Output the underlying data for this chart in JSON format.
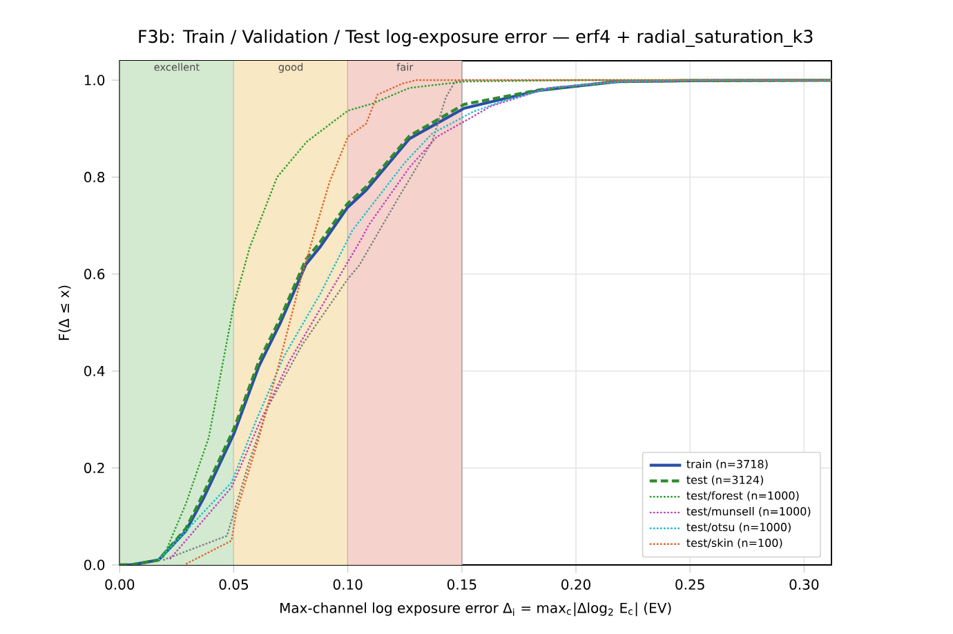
{
  "chart_data": {
    "type": "line",
    "title": "F3b: Train / Validation / Test log-exposure error — erf4 + radial_saturation_k3",
    "xlabel": "Max-channel log exposure error Δ$_{i}$ = max$_{c}$|Δlog$_{2}$ E$_{c}$|  (EV)",
    "ylabel": "F(Δ ≤ x)",
    "xlim": [
      0,
      0.312
    ],
    "ylim": [
      0,
      1.04
    ],
    "xticks": [
      {
        "value": 0,
        "label": "0.00"
      },
      {
        "value": 0.05,
        "label": "0.05"
      },
      {
        "value": 0.1,
        "label": "0.10"
      },
      {
        "value": 0.15,
        "label": "0.15"
      },
      {
        "value": 0.2,
        "label": "0.20"
      },
      {
        "value": 0.25,
        "label": "0.25"
      },
      {
        "value": 0.3,
        "label": "0.30"
      }
    ],
    "yticks": [
      {
        "value": 0,
        "label": "0.0"
      },
      {
        "value": 0.2,
        "label": "0.2"
      },
      {
        "value": 0.4,
        "label": "0.4"
      },
      {
        "value": 0.6,
        "label": "0.6"
      },
      {
        "value": 0.8,
        "label": "0.8"
      },
      {
        "value": 1.0,
        "label": "1.0"
      }
    ],
    "grid": true,
    "legend": "bottom right",
    "marker": "none",
    "bands": [
      {
        "axis": "x",
        "from": 0,
        "to": 0.05,
        "label": "excellent",
        "color": "#d3ead0"
      },
      {
        "axis": "x",
        "from": 0.05,
        "to": 0.1,
        "label": "good",
        "color": "#f8e8c4"
      },
      {
        "axis": "x",
        "from": 0.1,
        "to": 0.15,
        "label": "fair",
        "color": "#f5d3cc"
      }
    ],
    "series": [
      {
        "name": "train (n=3718)",
        "color": "#2a4ea6",
        "line_style": "solid",
        "x": [
          0,
          0.005,
          0.017,
          0.029,
          0.037,
          0.05,
          0.061,
          0.0705,
          0.0816,
          0.0877,
          0.0998,
          0.108,
          0.127,
          0.151,
          0.184,
          0.218,
          0.25,
          0.312
        ],
        "values": [
          0,
          0,
          0.01,
          0.07,
          0.14,
          0.27,
          0.41,
          0.5,
          0.62,
          0.655,
          0.737,
          0.773,
          0.879,
          0.942,
          0.979,
          0.997,
          0.999,
          1.0
        ]
      },
      {
        "name": "test (n=3124)",
        "color": "#2e8b2e",
        "line_style": "dashed",
        "x": [
          0,
          0.005,
          0.017,
          0.029,
          0.037,
          0.05,
          0.061,
          0.0705,
          0.0816,
          0.0877,
          0.0998,
          0.108,
          0.127,
          0.151,
          0.184,
          0.218,
          0.25,
          0.312
        ],
        "values": [
          0,
          0,
          0.01,
          0.075,
          0.15,
          0.28,
          0.42,
          0.51,
          0.63,
          0.665,
          0.745,
          0.78,
          0.885,
          0.95,
          0.98,
          0.997,
          0.999,
          1.0
        ]
      },
      {
        "color": "#7f7f7f",
        "line_style": "dotted",
        "x": [
          0.019,
          0.047,
          0.057,
          0.065,
          0.08,
          0.1,
          0.105,
          0.123,
          0.137,
          0.143,
          0.147,
          0.15,
          0.312
        ],
        "values": [
          0.01,
          0.06,
          0.216,
          0.326,
          0.454,
          0.59,
          0.618,
          0.764,
          0.874,
          0.965,
          0.997,
          1.0,
          1.0
        ]
      },
      {
        "name": "test/forest (n=1000)",
        "color": "#2ca02c",
        "line_style": "dotted",
        "x": [
          0.019,
          0.029,
          0.039,
          0.05,
          0.057,
          0.069,
          0.082,
          0.1,
          0.111,
          0.127,
          0.151,
          0.2,
          0.312
        ],
        "values": [
          0.015,
          0.126,
          0.262,
          0.536,
          0.655,
          0.8,
          0.873,
          0.937,
          0.952,
          0.984,
          0.997,
          1.0,
          1.0
        ]
      },
      {
        "name": "test/munsell (n=1000)",
        "color": "#bf40bf",
        "line_style": "dotted",
        "x": [
          0.022,
          0.049,
          0.061,
          0.074,
          0.09,
          0.106,
          0.109,
          0.127,
          0.139,
          0.153,
          0.163,
          0.188,
          0.218,
          0.26,
          0.312
        ],
        "values": [
          0.012,
          0.16,
          0.29,
          0.417,
          0.545,
          0.673,
          0.7,
          0.82,
          0.883,
          0.92,
          0.947,
          0.984,
          0.997,
          1.0,
          1.0
        ]
      },
      {
        "name": "test/otsu (n=1000)",
        "color": "#17becf",
        "line_style": "dotted",
        "x": [
          0.017,
          0.049,
          0.06,
          0.072,
          0.088,
          0.102,
          0.125,
          0.137,
          0.155,
          0.17,
          0.19,
          0.22,
          0.26,
          0.312
        ],
        "values": [
          0.01,
          0.17,
          0.3,
          0.43,
          0.56,
          0.69,
          0.83,
          0.89,
          0.935,
          0.96,
          0.985,
          0.997,
          1.0,
          1.0
        ]
      },
      {
        "name": "test/skin (n=100)",
        "color": "#e0622a",
        "line_style": "dotted",
        "x": [
          0.029,
          0.049,
          0.051,
          0.061,
          0.069,
          0.08,
          0.092,
          0.1,
          0.108,
          0.113,
          0.124,
          0.13,
          0.312
        ],
        "values": [
          0.002,
          0.05,
          0.107,
          0.262,
          0.4,
          0.6,
          0.79,
          0.883,
          0.91,
          0.97,
          0.993,
          1.0,
          1.0
        ]
      }
    ]
  }
}
